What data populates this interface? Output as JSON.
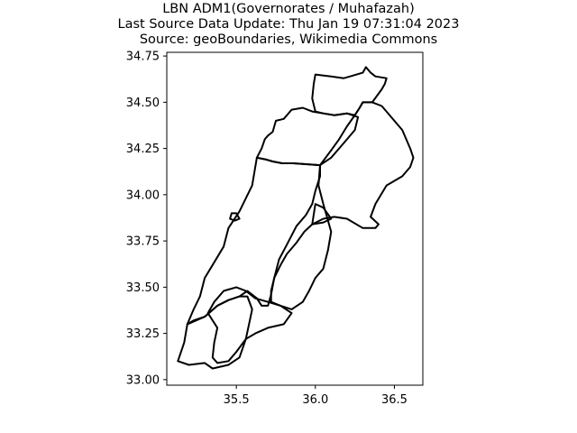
{
  "title": {
    "line1": "LBN ADM1(Governorates / Muhafazah)",
    "line2": "Last Source Data Update: Thu Jan 19 07:31:04 2023",
    "line3": "Source: geoBoundaries, Wikimedia Commons"
  },
  "axes": {
    "x_ticks": [
      {
        "value": 35.5,
        "label": "35.5"
      },
      {
        "value": 36.0,
        "label": "36.0"
      },
      {
        "value": 36.5,
        "label": "36.5"
      }
    ],
    "y_ticks": [
      {
        "value": 33.0,
        "label": "33.00"
      },
      {
        "value": 33.25,
        "label": "33.25"
      },
      {
        "value": 33.5,
        "label": "33.50"
      },
      {
        "value": 33.75,
        "label": "33.75"
      },
      {
        "value": 34.0,
        "label": "34.00"
      },
      {
        "value": 34.25,
        "label": "34.25"
      },
      {
        "value": 34.5,
        "label": "34.50"
      },
      {
        "value": 34.75,
        "label": "34.75"
      }
    ],
    "xlim": [
      35.06,
      36.68
    ],
    "ylim": [
      32.97,
      34.77
    ]
  },
  "map_data": {
    "type": "choropleth-outline",
    "country": "LBN",
    "level": "ADM1",
    "stroke_color": "#000000",
    "fill_color": "none",
    "regions": [
      {
        "id": "akkar",
        "points": [
          [
            36.0,
            34.65
          ],
          [
            36.1,
            34.64
          ],
          [
            36.18,
            34.63
          ],
          [
            36.22,
            34.64
          ],
          [
            36.3,
            34.66
          ],
          [
            36.32,
            34.69
          ],
          [
            36.35,
            34.66
          ],
          [
            36.38,
            34.64
          ],
          [
            36.45,
            34.63
          ],
          [
            36.44,
            34.6
          ],
          [
            36.42,
            34.57
          ],
          [
            36.36,
            34.5
          ],
          [
            36.3,
            34.5
          ],
          [
            36.28,
            34.47
          ],
          [
            36.25,
            34.43
          ],
          [
            36.2,
            34.44
          ],
          [
            36.12,
            34.43
          ],
          [
            36.05,
            34.44
          ],
          [
            36.0,
            34.45
          ],
          [
            35.98,
            34.52
          ],
          [
            35.99,
            34.6
          ]
        ]
      },
      {
        "id": "north",
        "points": [
          [
            35.98,
            34.45
          ],
          [
            35.92,
            34.47
          ],
          [
            35.85,
            34.46
          ],
          [
            35.8,
            34.41
          ],
          [
            35.75,
            34.4
          ],
          [
            35.73,
            34.34
          ],
          [
            35.7,
            34.32
          ],
          [
            35.68,
            34.3
          ],
          [
            35.66,
            34.25
          ],
          [
            35.63,
            34.2
          ],
          [
            35.69,
            34.19
          ],
          [
            35.73,
            34.18
          ],
          [
            35.79,
            34.17
          ],
          [
            35.86,
            34.17
          ],
          [
            36.03,
            34.16
          ],
          [
            36.1,
            34.2
          ],
          [
            36.15,
            34.25
          ],
          [
            36.2,
            34.3
          ],
          [
            36.25,
            34.35
          ],
          [
            36.27,
            34.42
          ],
          [
            36.2,
            34.44
          ],
          [
            36.12,
            34.43
          ],
          [
            36.05,
            34.44
          ]
        ]
      },
      {
        "id": "mount-lebanon",
        "points": [
          [
            35.63,
            34.2
          ],
          [
            35.6,
            34.05
          ],
          [
            35.52,
            33.91
          ],
          [
            35.45,
            33.82
          ],
          [
            35.42,
            33.72
          ],
          [
            35.35,
            33.62
          ],
          [
            35.3,
            33.55
          ],
          [
            35.27,
            33.45
          ],
          [
            35.23,
            33.38
          ],
          [
            35.19,
            33.3
          ],
          [
            35.23,
            33.32
          ],
          [
            35.3,
            33.34
          ],
          [
            35.38,
            33.4
          ],
          [
            35.45,
            33.43
          ],
          [
            35.52,
            33.45
          ],
          [
            35.57,
            33.48
          ],
          [
            35.63,
            33.44
          ],
          [
            35.66,
            33.4
          ],
          [
            35.7,
            33.4
          ],
          [
            35.72,
            33.46
          ],
          [
            35.74,
            33.55
          ],
          [
            35.77,
            33.65
          ],
          [
            35.82,
            33.73
          ],
          [
            35.88,
            33.83
          ],
          [
            35.94,
            33.89
          ],
          [
            35.98,
            33.95
          ],
          [
            36.0,
            34.02
          ],
          [
            36.03,
            34.1
          ],
          [
            36.03,
            34.16
          ],
          [
            35.86,
            34.17
          ],
          [
            35.79,
            34.17
          ],
          [
            35.73,
            34.18
          ],
          [
            35.69,
            34.19
          ]
        ]
      },
      {
        "id": "bekaa",
        "points": [
          [
            36.03,
            34.16
          ],
          [
            36.1,
            34.24
          ],
          [
            36.15,
            34.3
          ],
          [
            36.2,
            34.37
          ],
          [
            36.25,
            34.43
          ],
          [
            36.28,
            34.47
          ],
          [
            36.3,
            34.5
          ],
          [
            36.36,
            34.5
          ],
          [
            36.42,
            34.48
          ],
          [
            36.45,
            34.45
          ],
          [
            36.5,
            34.4
          ],
          [
            36.55,
            34.35
          ],
          [
            36.6,
            34.25
          ],
          [
            36.62,
            34.2
          ],
          [
            36.6,
            34.15
          ],
          [
            36.55,
            34.1
          ],
          [
            36.45,
            34.05
          ],
          [
            36.38,
            33.95
          ],
          [
            36.35,
            33.88
          ],
          [
            36.4,
            33.84
          ],
          [
            36.38,
            33.82
          ],
          [
            36.3,
            33.82
          ],
          [
            36.2,
            33.87
          ],
          [
            36.12,
            33.88
          ],
          [
            36.05,
            33.87
          ],
          [
            35.98,
            33.84
          ],
          [
            35.93,
            33.8
          ],
          [
            35.88,
            33.74
          ],
          [
            35.82,
            33.68
          ],
          [
            35.78,
            33.62
          ],
          [
            35.74,
            33.55
          ],
          [
            35.72,
            33.48
          ],
          [
            35.72,
            33.42
          ],
          [
            35.78,
            33.4
          ],
          [
            35.85,
            33.38
          ],
          [
            35.92,
            33.42
          ],
          [
            35.96,
            33.48
          ],
          [
            36.0,
            33.55
          ],
          [
            36.05,
            33.6
          ],
          [
            36.08,
            33.7
          ],
          [
            36.1,
            33.8
          ],
          [
            36.05,
            33.95
          ],
          [
            36.02,
            34.05
          ]
        ]
      },
      {
        "id": "baalbek-hermel",
        "points": [
          [
            36.0,
            33.95
          ],
          [
            36.05,
            33.93
          ],
          [
            36.1,
            33.87
          ],
          [
            36.05,
            33.85
          ],
          [
            35.98,
            33.84
          ]
        ]
      },
      {
        "id": "south",
        "points": [
          [
            35.19,
            33.3
          ],
          [
            35.17,
            33.2
          ],
          [
            35.13,
            33.1
          ],
          [
            35.2,
            33.08
          ],
          [
            35.3,
            33.09
          ],
          [
            35.35,
            33.06
          ],
          [
            35.45,
            33.08
          ],
          [
            35.52,
            33.12
          ],
          [
            35.56,
            33.22
          ],
          [
            35.58,
            33.3
          ],
          [
            35.6,
            33.38
          ],
          [
            35.57,
            33.45
          ],
          [
            35.52,
            33.45
          ],
          [
            35.45,
            33.43
          ],
          [
            35.38,
            33.4
          ],
          [
            35.3,
            33.34
          ]
        ]
      },
      {
        "id": "nabatieh",
        "points": [
          [
            35.32,
            33.36
          ],
          [
            35.36,
            33.42
          ],
          [
            35.42,
            33.48
          ],
          [
            35.5,
            33.5
          ],
          [
            35.56,
            33.48
          ],
          [
            35.62,
            33.44
          ],
          [
            35.7,
            33.42
          ],
          [
            35.78,
            33.4
          ],
          [
            35.85,
            33.36
          ],
          [
            35.8,
            33.3
          ],
          [
            35.7,
            33.28
          ],
          [
            35.62,
            33.25
          ],
          [
            35.56,
            33.22
          ],
          [
            35.5,
            33.15
          ],
          [
            35.45,
            33.1
          ],
          [
            35.38,
            33.09
          ],
          [
            35.35,
            33.12
          ],
          [
            35.36,
            33.2
          ],
          [
            35.38,
            33.28
          ]
        ]
      },
      {
        "id": "beirut",
        "points": [
          [
            35.47,
            33.9
          ],
          [
            35.5,
            33.9
          ],
          [
            35.52,
            33.87
          ],
          [
            35.49,
            33.86
          ],
          [
            35.46,
            33.87
          ]
        ]
      }
    ]
  }
}
